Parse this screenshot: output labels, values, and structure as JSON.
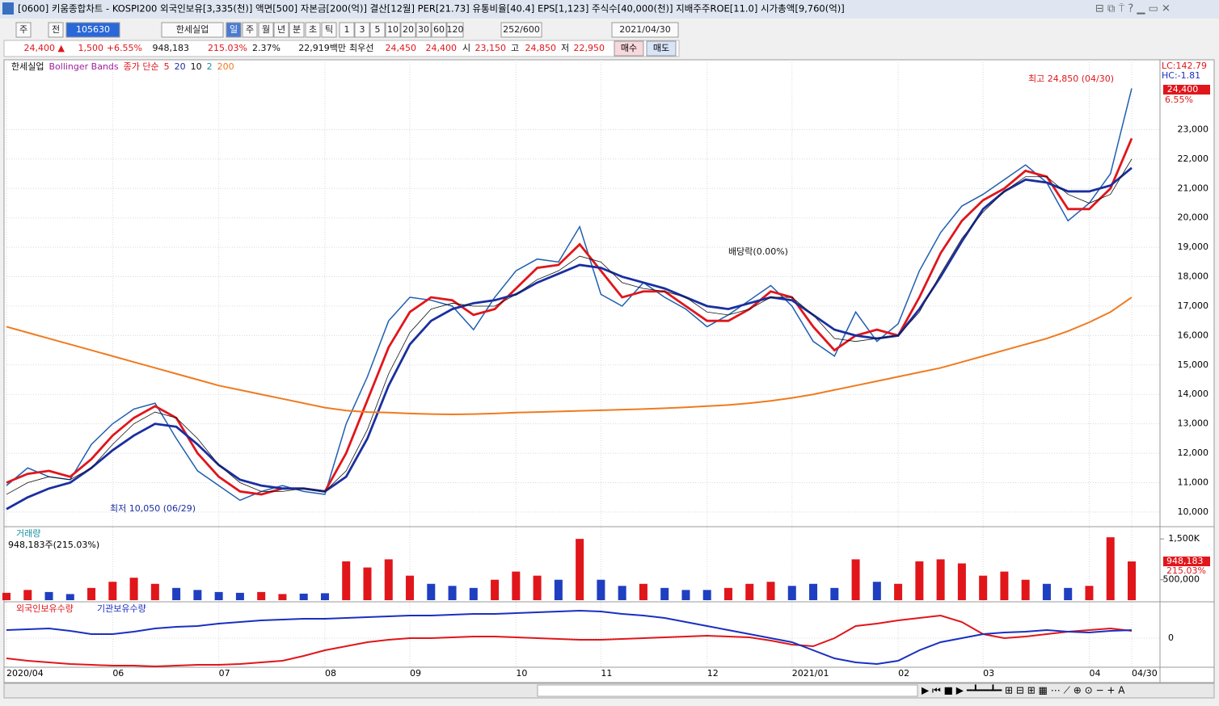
{
  "window": {
    "title": "[0600] 키움종합차트 - KOSPI200 외국인보유[3,335(천)] 액면[500] 자본금[200(억)] 결산[12월] PER[21.73] 유통비율[40.4] EPS[1,123] 주식수[40,000(천)] 지배주주ROE[11.0] 시가총액[9,760(억)]"
  },
  "toolbar": [
    "주",
    "전",
    "105630",
    "한세실업",
    "일",
    "주",
    "월",
    "년",
    "분",
    "초",
    "틱",
    "1",
    "3",
    "5",
    "10",
    "20",
    "30",
    "60",
    "120",
    "252/600",
    "2021/04/30"
  ],
  "quote": [
    "24,400 ▲",
    "1,500",
    "+6.55%",
    "948,183",
    "215.03%",
    "2.37%",
    "22,919백만",
    "최우선",
    "24,450",
    "24,400",
    "시",
    "23,150",
    "고",
    "24,850",
    "저",
    "22,950",
    "매수",
    "매도"
  ],
  "chart_data": [
    {
      "type": "line",
      "indicator": "Bollinger Bands",
      "ma_label": "종가 단순",
      "bb_width": "2",
      "categories": [
        "2020/04",
        null,
        null,
        null,
        null,
        "06",
        null,
        null,
        null,
        null,
        "07",
        null,
        null,
        null,
        null,
        "08",
        null,
        null,
        null,
        "09",
        null,
        null,
        null,
        null,
        "10",
        null,
        null,
        null,
        "11",
        null,
        null,
        null,
        null,
        "12",
        null,
        null,
        null,
        "2021/01",
        null,
        null,
        null,
        null,
        "02",
        null,
        null,
        null,
        "03",
        null,
        null,
        null,
        null,
        "04",
        null,
        "04/30"
      ],
      "series": [
        {
          "name": "한세실업",
          "color": "#1f5fb0",
          "values": [
            10900,
            11500,
            11200,
            11100,
            12300,
            13000,
            13500,
            13700,
            12500,
            11400,
            10900,
            10400,
            10700,
            10900,
            10700,
            10600,
            13000,
            14600,
            16500,
            17300,
            17200,
            17000,
            16200,
            17300,
            18200,
            18600,
            18500,
            19700,
            17400,
            17000,
            17800,
            17300,
            16900,
            16300,
            16700,
            17200,
            17700,
            17000,
            15800,
            15300,
            16800,
            15800,
            16400,
            18200,
            19500,
            20400,
            20800,
            21300,
            21800,
            21200,
            19900,
            20500,
            21500,
            24400
          ]
        },
        {
          "name": "5",
          "color": "#e0161b",
          "values": [
            11000,
            11300,
            11400,
            11200,
            11800,
            12600,
            13200,
            13600,
            13200,
            12000,
            11200,
            10700,
            10600,
            10800,
            10800,
            10700,
            12000,
            13800,
            15600,
            16800,
            17300,
            17200,
            16700,
            16900,
            17600,
            18300,
            18400,
            19100,
            18200,
            17300,
            17500,
            17500,
            17000,
            16500,
            16500,
            16900,
            17500,
            17300,
            16300,
            15500,
            16000,
            16200,
            16000,
            17300,
            18800,
            19900,
            20600,
            21000,
            21600,
            21400,
            20300,
            20300,
            21000,
            22700
          ]
        },
        {
          "name": "20",
          "color": "#1a2fa0",
          "values": [
            10100,
            10500,
            10800,
            11000,
            11500,
            12100,
            12600,
            13000,
            12900,
            12300,
            11600,
            11100,
            10900,
            10800,
            10800,
            10700,
            11200,
            12500,
            14300,
            15700,
            16500,
            16900,
            17100,
            17200,
            17400,
            17800,
            18100,
            18400,
            18300,
            18000,
            17800,
            17600,
            17300,
            17000,
            16900,
            17100,
            17300,
            17200,
            16700,
            16200,
            16000,
            15900,
            16000,
            16900,
            18000,
            19200,
            20300,
            20900,
            21300,
            21200,
            20900,
            20900,
            21100,
            21700
          ]
        },
        {
          "name": "10",
          "color": "#111111",
          "values": [
            10600,
            11000,
            11200,
            11100,
            11500,
            12300,
            13000,
            13400,
            13200,
            12500,
            11600,
            11000,
            10700,
            10700,
            10800,
            10700,
            11400,
            12800,
            14700,
            16100,
            16900,
            17100,
            17000,
            17000,
            17400,
            17900,
            18200,
            18700,
            18500,
            17800,
            17600,
            17500,
            17300,
            16800,
            16700,
            16900,
            17300,
            17300,
            16700,
            15900,
            15800,
            15900,
            16000,
            16800,
            18100,
            19300,
            20200,
            20900,
            21400,
            21400,
            20800,
            20500,
            20800,
            22000
          ]
        },
        {
          "name": "200",
          "color": "#f07a1e",
          "values": [
            16300,
            16100,
            15900,
            15700,
            15500,
            15300,
            15100,
            14900,
            14700,
            14500,
            14300,
            14150,
            14000,
            13850,
            13700,
            13550,
            13450,
            13400,
            13380,
            13350,
            13330,
            13320,
            13330,
            13350,
            13380,
            13400,
            13420,
            13440,
            13460,
            13480,
            13500,
            13530,
            13560,
            13600,
            13640,
            13700,
            13780,
            13880,
            14000,
            14150,
            14300,
            14450,
            14600,
            14750,
            14900,
            15100,
            15300,
            15500,
            15700,
            15900,
            16150,
            16450,
            16800,
            17300
          ]
        }
      ],
      "ylim": [
        9503,
        25374
      ],
      "yticks": [
        {
          "value": 10000,
          "label": "10,000"
        },
        {
          "value": 11000,
          "label": "11,000"
        },
        {
          "value": 12000,
          "label": "12,000"
        },
        {
          "value": 13000,
          "label": "13,000"
        },
        {
          "value": 14000,
          "label": "14,000"
        },
        {
          "value": 15000,
          "label": "15,000"
        },
        {
          "value": 16000,
          "label": "16,000"
        },
        {
          "value": 17000,
          "label": "17,000"
        },
        {
          "value": 18000,
          "label": "18,000"
        },
        {
          "value": 19000,
          "label": "19,000"
        },
        {
          "value": 20000,
          "label": "20,000"
        },
        {
          "value": 21000,
          "label": "21,000"
        },
        {
          "value": 22000,
          "label": "22,000"
        },
        {
          "value": 23000,
          "label": "23,000"
        }
      ],
      "grid": true,
      "annotations": [
        "최고 24,850 (04/30)",
        "최저 10,050 (06/29)",
        "배당락(0.00%)",
        "LC:142.79",
        "HC:-1.81",
        "24,400",
        "6.55%"
      ]
    },
    {
      "type": "bar",
      "title": "거래량",
      "subtitle": "948,183주(215.03%)",
      "up_color": "#e0161b",
      "down_color": "#1f3fc0",
      "values": [
        180000,
        250000,
        200000,
        150000,
        300000,
        450000,
        550000,
        400000,
        300000,
        250000,
        200000,
        180000,
        200000,
        150000,
        160000,
        170000,
        950000,
        800000,
        1000000,
        600000,
        400000,
        350000,
        300000,
        500000,
        700000,
        600000,
        500000,
        1500000,
        500000,
        350000,
        400000,
        300000,
        250000,
        250000,
        300000,
        400000,
        450000,
        350000,
        400000,
        300000,
        1000000,
        450000,
        400000,
        950000,
        1000000,
        900000,
        600000,
        700000,
        500000,
        400000,
        300000,
        350000,
        1540000,
        948183
      ],
      "ylim": [
        0,
        1740000
      ],
      "yticks": [
        {
          "value": 500000,
          "label": "500,000"
        },
        {
          "value": 1500000,
          "label": "1,500K"
        }
      ],
      "annotations": [
        "948,183",
        "215.03%"
      ]
    },
    {
      "type": "line",
      "series": [
        {
          "name": "외국인보유수량",
          "color": "#e0161b",
          "values": [
            -25,
            -28,
            -30,
            -32,
            -33,
            -34,
            -34,
            -35,
            -34,
            -33,
            -33,
            -32,
            -30,
            -28,
            -22,
            -15,
            -10,
            -5,
            -2,
            0,
            0,
            1,
            2,
            2,
            1,
            0,
            -1,
            -2,
            -2,
            -1,
            0,
            1,
            2,
            3,
            2,
            1,
            -3,
            -8,
            -10,
            0,
            15,
            18,
            22,
            25,
            28,
            20,
            5,
            0,
            2,
            5,
            8,
            10,
            12,
            9
          ]
        },
        {
          "name": "기관보유수량",
          "color": "#1a2fc0",
          "values": [
            10,
            11,
            12,
            9,
            5,
            5,
            8,
            12,
            14,
            15,
            18,
            20,
            22,
            23,
            24,
            24,
            25,
            26,
            27,
            28,
            28,
            29,
            30,
            30,
            31,
            32,
            33,
            34,
            33,
            30,
            28,
            25,
            20,
            15,
            10,
            5,
            0,
            -5,
            -15,
            -25,
            -30,
            -32,
            -28,
            -15,
            -5,
            0,
            5,
            7,
            8,
            10,
            8,
            7,
            9,
            10
          ]
        }
      ],
      "ylim": [
        -35,
        42
      ],
      "yticks": [
        0
      ]
    }
  ]
}
